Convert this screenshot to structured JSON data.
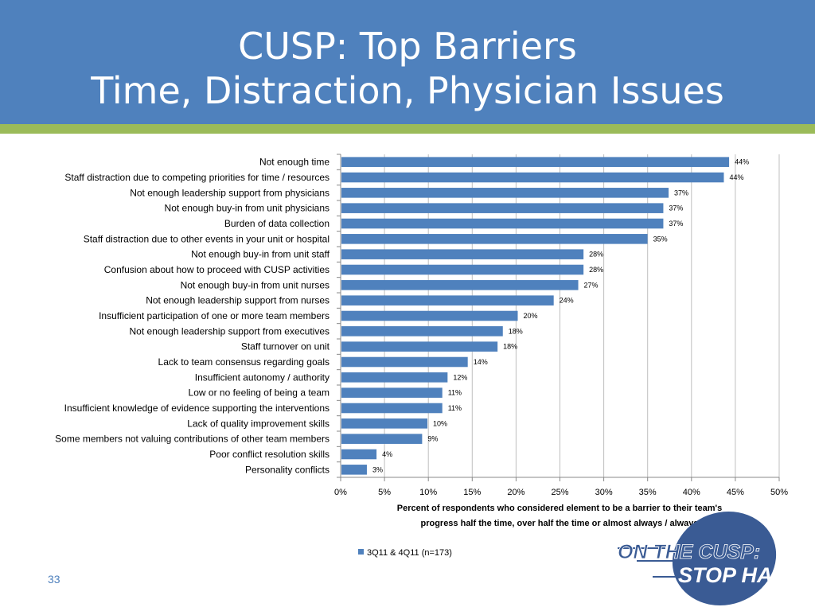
{
  "slide": {
    "title_line1": "CUSP: Top Barriers",
    "title_line2": "Time, Distraction, Physician Issues",
    "slide_number": "33",
    "logo_text_line1": "ON THE CUSP:",
    "logo_text_line2": "STOP HAI"
  },
  "colors": {
    "header": "#4f81bd",
    "stripe": "#9bbb59",
    "bar": "#4f81bd",
    "logo_oval": "#3a5b94"
  },
  "chart_data": {
    "type": "bar",
    "orientation": "horizontal",
    "categories": [
      "Not enough time",
      "Staff distraction due to competing priorities for time / resources",
      "Not enough leadership support from physicians",
      "Not enough buy-in from unit physicians",
      "Burden of data collection",
      "Staff distraction due to other events in your unit or hospital",
      "Not enough buy-in from unit staff",
      "Confusion about how to proceed with CUSP activities",
      "Not enough buy-in from unit nurses",
      "Not enough leadership support from nurses",
      "Insufficient participation of one or more team members",
      "Not enough leadership support from executives",
      "Staff turnover on unit",
      "Lack to team consensus regarding goals",
      "Insufficient autonomy / authority",
      "Low or no feeling of being a team",
      "Insufficient knowledge of evidence supporting the interventions",
      "Lack of quality improvement skills",
      "Some members not valuing contributions of other team members",
      "Poor conflict resolution skills",
      "Personality conflicts"
    ],
    "series": [
      {
        "name": "3Q11 & 4Q11 (n=173)",
        "values": [
          44.2,
          43.6,
          37.3,
          36.7,
          36.7,
          34.9,
          27.6,
          27.6,
          27.0,
          24.2,
          20.1,
          18.4,
          17.8,
          14.4,
          12.1,
          11.5,
          11.5,
          9.8,
          9.2,
          4.0,
          2.9
        ],
        "labels": [
          "44%",
          "44%",
          "37%",
          "37%",
          "37%",
          "35%",
          "28%",
          "28%",
          "27%",
          "24%",
          "20%",
          "18%",
          "18%",
          "14%",
          "12%",
          "11%",
          "11%",
          "10%",
          "9%",
          "4%",
          "3%"
        ]
      }
    ],
    "xlim": [
      0,
      50
    ],
    "xticks": [
      "0%",
      "5%",
      "10%",
      "15%",
      "20%",
      "25%",
      "30%",
      "35%",
      "40%",
      "45%",
      "50%"
    ],
    "xlabel_line1": "Percent of respondents who considered element to be a barrier to their team's",
    "xlabel_line2": "progress half the time, over half the time or almost always / always",
    "grid": "vertical",
    "legend_position": "bottom"
  }
}
